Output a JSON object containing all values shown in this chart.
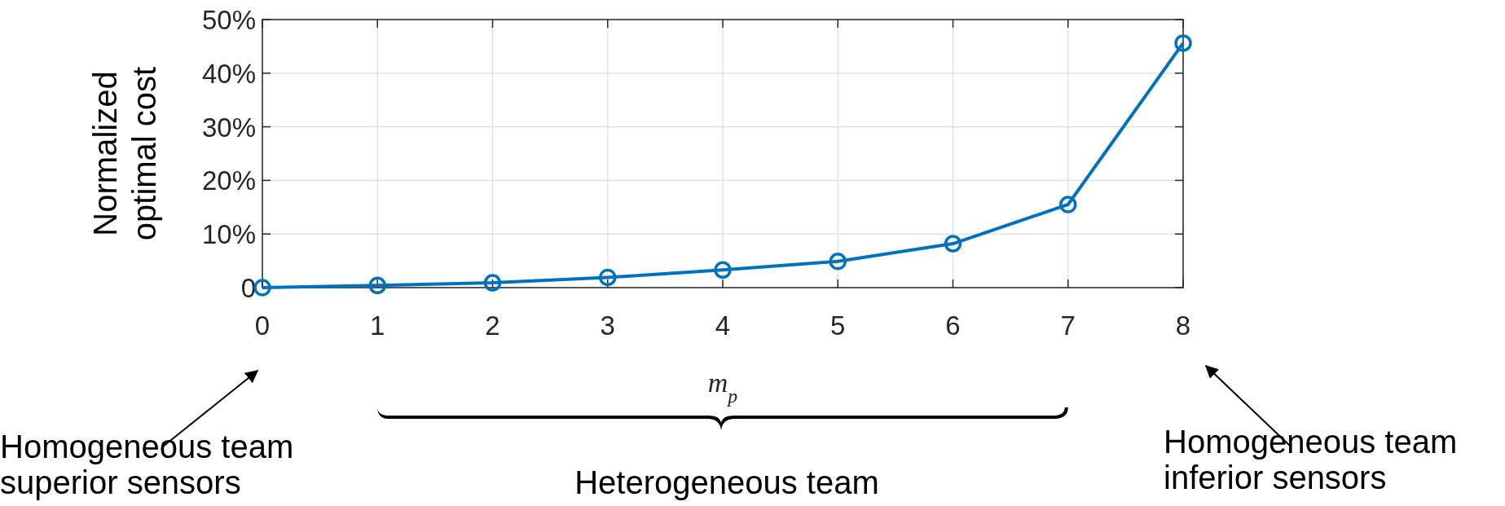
{
  "chart_data": {
    "type": "line",
    "xlabel": "m$_{p}$",
    "ylabel": "Normalized\noptimal cost",
    "x": [
      0,
      1,
      2,
      3,
      4,
      5,
      6,
      7,
      8
    ],
    "series": [
      {
        "color": "#0072bd",
        "values": [
          0,
          0.4,
          0.9,
          1.9,
          3.3,
          4.9,
          8.2,
          15.5,
          45.6
        ]
      }
    ],
    "xlim": [
      0,
      8
    ],
    "xticks": [
      0,
      1,
      2,
      3,
      4,
      5,
      6,
      7,
      8
    ],
    "ylim": [
      0,
      50
    ],
    "yticks": [
      0,
      {
        "value": 10,
        "label": "10%"
      },
      {
        "value": 20,
        "label": "20%"
      },
      {
        "value": 30,
        "label": "30%"
      },
      {
        "value": 40,
        "label": "40%"
      },
      {
        "value": 50,
        "label": "50%"
      }
    ],
    "grid": true,
    "marker": "circle",
    "line_style": "solid",
    "annotations": [
      "Homogeneous team\nsuperior sensors",
      "Heterogeneous team",
      "Homogeneous team\ninferior sensors"
    ]
  }
}
